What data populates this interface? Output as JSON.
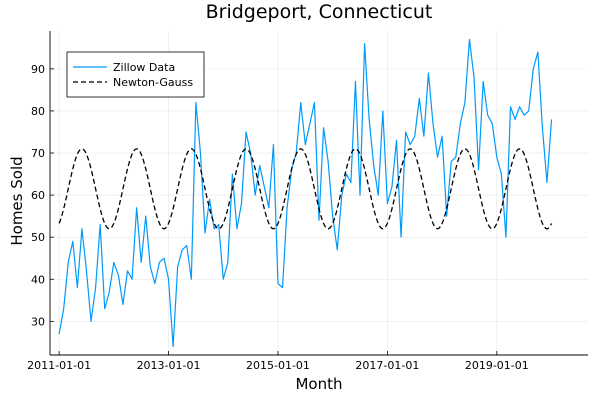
{
  "chart_data": {
    "type": "line",
    "title": "Bridgeport, Connecticut",
    "xlabel": "Month",
    "ylabel": "Homes Sold",
    "x_start": "2011-01",
    "xlim": [
      "2010-11",
      "2020-09"
    ],
    "ylim": [
      22,
      99
    ],
    "x_ticks": [
      "2011-01-01",
      "2013-01-01",
      "2015-01-01",
      "2017-01-01",
      "2019-01-01"
    ],
    "y_ticks": [
      30,
      40,
      50,
      60,
      70,
      80,
      90
    ],
    "grid": true,
    "legend_position": "top-left",
    "series": [
      {
        "name": "Zillow Data",
        "color": "#009AFA",
        "style": "solid",
        "values": [
          27,
          33,
          44,
          49,
          38,
          52,
          42,
          30,
          38,
          53,
          33,
          37,
          44,
          41,
          34,
          42,
          40,
          57,
          44,
          55,
          43,
          39,
          44,
          45,
          40,
          24,
          43,
          47,
          48,
          40,
          82,
          70,
          51,
          59,
          52,
          53,
          40,
          44,
          65,
          52,
          58,
          75,
          70,
          60,
          67,
          62,
          57,
          72,
          39,
          38,
          57,
          66,
          70,
          82,
          72,
          77,
          82,
          54,
          76,
          68,
          55,
          47,
          60,
          65,
          63,
          87,
          60,
          96,
          78,
          67,
          60,
          80,
          58,
          62,
          73,
          50,
          75,
          72,
          74,
          83,
          74,
          89,
          77,
          69,
          74,
          55,
          68,
          69,
          77,
          82,
          97,
          88,
          66,
          87,
          79,
          77,
          69,
          65,
          50,
          81,
          78,
          81,
          79,
          80,
          90,
          94,
          76,
          63,
          78
        ],
        "x_note_months_from_start": 0
      },
      {
        "name": "Newton-Gauss",
        "color": "#000000",
        "style": "dashed",
        "mean": 61.5,
        "amplitude": 9.5,
        "period_months": 12,
        "peak_month": "2011-06",
        "months": 109
      }
    ]
  }
}
